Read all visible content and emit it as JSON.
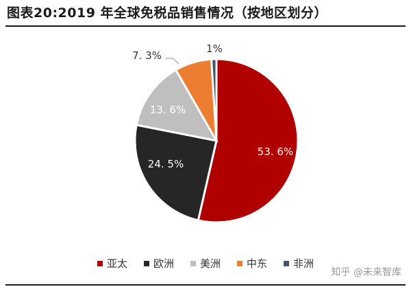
{
  "title": "图表20:2019 年全球免税品销售情况（按地区划分）",
  "watermark": "知乎 @未来智库",
  "chart_data": {
    "type": "pie",
    "title": "图表20:2019 年全球免税品销售情况（按地区划分）",
    "slices": [
      {
        "name": "亚太",
        "value": 53.6,
        "label": "53. 6%",
        "color": "#b00000"
      },
      {
        "name": "欧洲",
        "value": 24.5,
        "label": "24. 5%",
        "color": "#262626"
      },
      {
        "name": "美洲",
        "value": 13.6,
        "label": "13. 6%",
        "color": "#bfbfbf"
      },
      {
        "name": "中东",
        "value": 7.3,
        "label": "7. 3%",
        "color": "#ed7d31"
      },
      {
        "name": "非洲",
        "value": 1,
        "label": "1%",
        "color": "#44546a"
      }
    ],
    "legend_position": "bottom"
  }
}
